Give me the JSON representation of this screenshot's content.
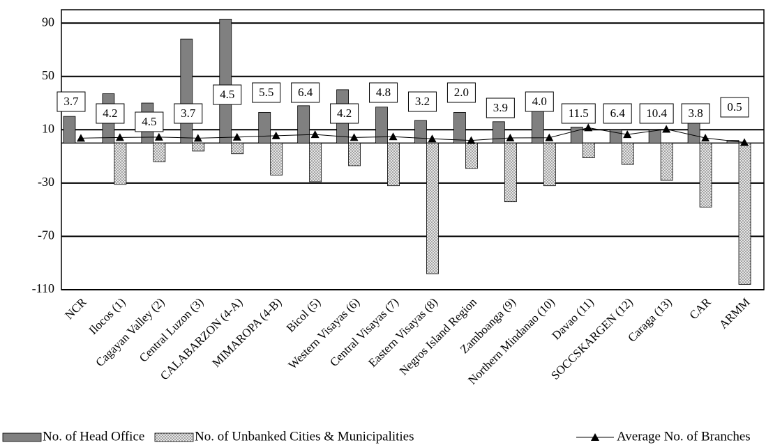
{
  "chart_data": {
    "type": "combo",
    "categories": [
      "NCR",
      "Ilocos (1)",
      "Cagayan Valley (2)",
      "Central Luzon (3)",
      "CALABARZON (4-A)",
      "MIMAROPA (4-B)",
      "Bicol (5)",
      "Western Visayas (6)",
      "Central Visayas (7)",
      "Eastern Visayas (8)",
      "Negros Island Region",
      "Zamboanga (9)",
      "Northern Mindanao (10)",
      "Davao (11)",
      "SOCCSKARGEN (12)",
      "Caraga (13)",
      "CAR",
      "ARMM"
    ],
    "series": [
      {
        "name": "No. of Head Office",
        "kind": "bar",
        "color": "#808080",
        "values": [
          20,
          37,
          30,
          78,
          93,
          23,
          28,
          40,
          27,
          17,
          23,
          16,
          30,
          12,
          10,
          10,
          17,
          2
        ]
      },
      {
        "name": "No. of Unbanked Cities & Municipalities",
        "kind": "bar",
        "color": "#d9d9d9",
        "values": [
          0,
          -31,
          -14,
          -6,
          -8,
          -24,
          -29,
          -17,
          -32,
          -98,
          -19,
          -44,
          -32,
          -11,
          -16,
          -28,
          -48,
          -106
        ]
      },
      {
        "name": "Average No. of Branches",
        "kind": "line",
        "color": "#000000",
        "values": [
          3.7,
          4.2,
          4.5,
          3.7,
          4.5,
          5.5,
          6.4,
          4.2,
          4.8,
          3.2,
          2.0,
          3.9,
          4.0,
          11.5,
          6.4,
          10.4,
          3.8,
          0.5
        ],
        "value_labels": [
          "3.7",
          "4.2",
          "4.5",
          "3.7",
          "4.5",
          "5.5",
          "6.4",
          "4.2",
          "4.8",
          "3.2",
          "2.0",
          "3.9",
          "4.0",
          "11.5",
          "6.4",
          "10.4",
          "3.8",
          "0.5"
        ]
      }
    ],
    "ylim": [
      -110,
      100
    ],
    "yticks": [
      -110,
      -70,
      -30,
      10,
      50,
      90
    ],
    "grid": true,
    "legend": "bottom"
  }
}
